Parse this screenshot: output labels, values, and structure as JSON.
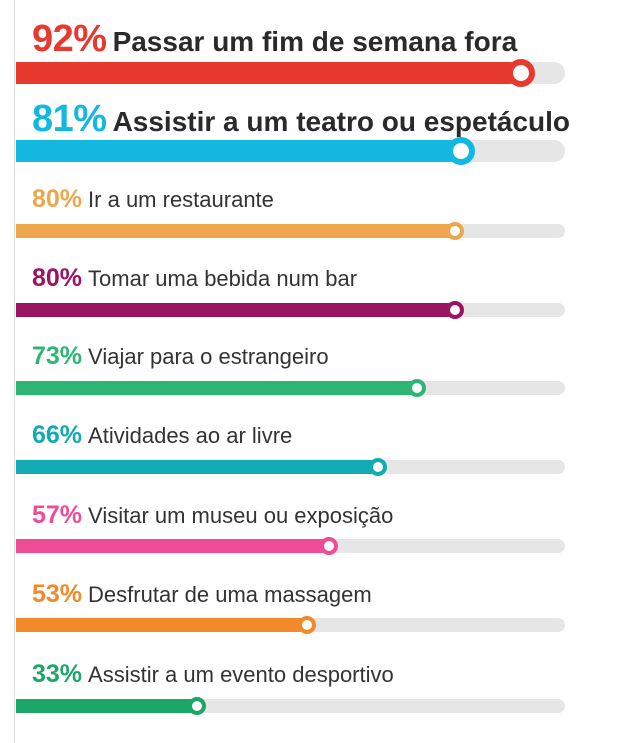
{
  "chart_data": {
    "type": "bar",
    "orientation": "horizontal",
    "value_suffix": "%",
    "xlim": [
      0,
      100
    ],
    "items": [
      {
        "value": 92,
        "pct_label": "92%",
        "label": "Passar um fim de semana fora",
        "color": "#e8392f"
      },
      {
        "value": 81,
        "pct_label": "81%",
        "label": "Assistir a um teatro ou espetáculo",
        "color": "#13b8e0"
      },
      {
        "value": 80,
        "pct_label": "80%",
        "label": "Ir a um restaurante",
        "color": "#eea64c"
      },
      {
        "value": 80,
        "pct_label": "80%",
        "label": "Tomar uma bebida num bar",
        "color": "#9a1461"
      },
      {
        "value": 73,
        "pct_label": "73%",
        "label": "Viajar para o estrangeiro",
        "color": "#2db673"
      },
      {
        "value": 66,
        "pct_label": "66%",
        "label": "Atividades ao ar livre",
        "color": "#12aab5"
      },
      {
        "value": 57,
        "pct_label": "57%",
        "label": "Visitar um museu ou exposição",
        "color": "#ef4c97"
      },
      {
        "value": 53,
        "pct_label": "53%",
        "label": "Desfrutar de uma massagem",
        "color": "#f28a2a"
      },
      {
        "value": 33,
        "pct_label": "33%",
        "label": "Assistir a um evento desportivo",
        "color": "#1aa768"
      }
    ]
  }
}
